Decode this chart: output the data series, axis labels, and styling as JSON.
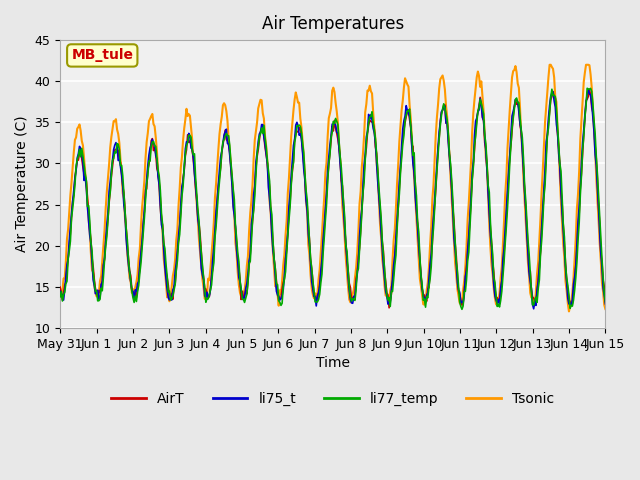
{
  "title": "Air Temperatures",
  "xlabel": "Time",
  "ylabel": "Air Temperature (C)",
  "ylim": [
    10,
    45
  ],
  "yticks": [
    10,
    15,
    20,
    25,
    30,
    35,
    40,
    45
  ],
  "x_tick_labels": [
    "May 31",
    "Jun 1",
    "Jun 2",
    "Jun 3",
    "Jun 4",
    "Jun 5",
    "Jun 6",
    "Jun 7",
    "Jun 8",
    "Jun 9",
    "Jun 10",
    "Jun 11",
    "Jun 12",
    "Jun 13",
    "Jun 14",
    "Jun 15"
  ],
  "colors": {
    "AirT": "#cc0000",
    "li75_t": "#0000cc",
    "li77_temp": "#00aa00",
    "Tsonic": "#ff9900"
  },
  "annotation_text": "MB_tule",
  "annotation_facecolor": "#ffffcc",
  "annotation_edgecolor": "#999900",
  "annotation_textcolor": "#cc0000",
  "background_color": "#e8e8e8",
  "plot_bg_color": "#f0f0f0",
  "grid_color": "#ffffff",
  "num_points": 480,
  "xlim": [
    0,
    15
  ]
}
